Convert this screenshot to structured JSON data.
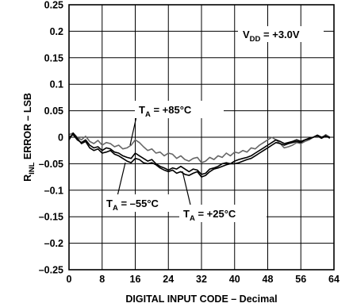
{
  "chart_data": {
    "type": "line",
    "xlabel": "DIGITAL INPUT CODE – Decimal",
    "ylabel_main": "R",
    "ylabel_sub": "INL",
    "ylabel_rest": " ERROR – LSB",
    "xlim": [
      0,
      64
    ],
    "ylim": [
      -0.25,
      0.25
    ],
    "xticks": [
      "0",
      "8",
      "16",
      "24",
      "32",
      "40",
      "48",
      "56",
      "64"
    ],
    "yticks": [
      "0.25",
      "0.2",
      "0.15",
      "0.1",
      "0.05",
      "0",
      "–0.05",
      "–0.1",
      "–0.15",
      "–0.2",
      "–0.25"
    ],
    "grid": true,
    "annotation": {
      "main": "V",
      "sub": "DD",
      "rest": " = +3.0V"
    },
    "series": [
      {
        "name_main": "T",
        "name_sub": "A",
        "name_rest": " = +85°C",
        "color": "#666666",
        "x": [
          0,
          1,
          2,
          3,
          4,
          5,
          6,
          7,
          8,
          9,
          10,
          11,
          12,
          13,
          14,
          15,
          16,
          17,
          18,
          19,
          20,
          21,
          22,
          23,
          24,
          25,
          26,
          27,
          28,
          29,
          30,
          31,
          32,
          33,
          34,
          35,
          36,
          37,
          38,
          39,
          40,
          41,
          42,
          43,
          44,
          45,
          46,
          47,
          48,
          49,
          50,
          51,
          52,
          53,
          54,
          55,
          56,
          57,
          58,
          59,
          60,
          61,
          62,
          63
        ],
        "y": [
          0.005,
          0.008,
          0.0,
          -0.005,
          0.002,
          -0.008,
          -0.012,
          -0.006,
          -0.015,
          -0.01,
          -0.012,
          -0.018,
          -0.015,
          -0.022,
          -0.02,
          -0.015,
          -0.005,
          -0.01,
          -0.018,
          -0.025,
          -0.022,
          -0.03,
          -0.028,
          -0.035,
          -0.03,
          -0.032,
          -0.04,
          -0.035,
          -0.042,
          -0.045,
          -0.04,
          -0.038,
          -0.048,
          -0.045,
          -0.038,
          -0.042,
          -0.035,
          -0.038,
          -0.03,
          -0.035,
          -0.028,
          -0.03,
          -0.025,
          -0.028,
          -0.02,
          -0.022,
          -0.015,
          -0.01,
          -0.005,
          0.0,
          -0.005,
          -0.012,
          -0.02,
          -0.018,
          -0.015,
          -0.01,
          -0.012,
          -0.008,
          -0.005,
          0.0,
          0.002,
          -0.002,
          0.005,
          0.0
        ]
      },
      {
        "name_main": "T",
        "name_sub": "A",
        "name_rest": " = +25°C",
        "color": "#000000",
        "x": [
          0,
          1,
          2,
          3,
          4,
          5,
          6,
          7,
          8,
          9,
          10,
          11,
          12,
          13,
          14,
          15,
          16,
          17,
          18,
          19,
          20,
          21,
          22,
          23,
          24,
          25,
          26,
          27,
          28,
          29,
          30,
          31,
          32,
          33,
          34,
          35,
          36,
          37,
          38,
          39,
          40,
          41,
          42,
          43,
          44,
          45,
          46,
          47,
          48,
          49,
          50,
          51,
          52,
          53,
          54,
          55,
          56,
          57,
          58,
          59,
          60,
          61,
          62,
          63
        ],
        "y": [
          0.0,
          0.005,
          -0.005,
          -0.01,
          -0.005,
          -0.015,
          -0.02,
          -0.018,
          -0.025,
          -0.02,
          -0.022,
          -0.028,
          -0.03,
          -0.035,
          -0.038,
          -0.04,
          -0.03,
          -0.035,
          -0.04,
          -0.045,
          -0.042,
          -0.05,
          -0.055,
          -0.058,
          -0.062,
          -0.058,
          -0.06,
          -0.055,
          -0.06,
          -0.065,
          -0.06,
          -0.062,
          -0.07,
          -0.068,
          -0.06,
          -0.058,
          -0.055,
          -0.05,
          -0.048,
          -0.05,
          -0.045,
          -0.042,
          -0.04,
          -0.038,
          -0.035,
          -0.03,
          -0.025,
          -0.02,
          -0.015,
          -0.01,
          -0.005,
          -0.008,
          -0.012,
          -0.01,
          -0.008,
          -0.005,
          -0.008,
          -0.005,
          -0.002,
          0.0,
          0.003,
          -0.002,
          0.002,
          0.0
        ]
      },
      {
        "name_main": "T",
        "name_sub": "A",
        "name_rest": " = –55°C",
        "color": "#000000",
        "x": [
          0,
          1,
          2,
          3,
          4,
          5,
          6,
          7,
          8,
          9,
          10,
          11,
          12,
          13,
          14,
          15,
          16,
          17,
          18,
          19,
          20,
          21,
          22,
          23,
          24,
          25,
          26,
          27,
          28,
          29,
          30,
          31,
          32,
          33,
          34,
          35,
          36,
          37,
          38,
          39,
          40,
          41,
          42,
          43,
          44,
          45,
          46,
          47,
          48,
          49,
          50,
          51,
          52,
          53,
          54,
          55,
          56,
          57,
          58,
          59,
          60,
          61,
          62,
          63
        ],
        "y": [
          -0.005,
          0.008,
          -0.002,
          -0.012,
          -0.008,
          -0.02,
          -0.025,
          -0.022,
          -0.03,
          -0.028,
          -0.025,
          -0.032,
          -0.035,
          -0.04,
          -0.045,
          -0.048,
          -0.04,
          -0.042,
          -0.048,
          -0.05,
          -0.048,
          -0.052,
          -0.058,
          -0.062,
          -0.065,
          -0.062,
          -0.068,
          -0.065,
          -0.07,
          -0.072,
          -0.068,
          -0.065,
          -0.075,
          -0.072,
          -0.065,
          -0.06,
          -0.058,
          -0.055,
          -0.052,
          -0.05,
          -0.05,
          -0.048,
          -0.045,
          -0.042,
          -0.04,
          -0.035,
          -0.03,
          -0.025,
          -0.02,
          -0.015,
          -0.01,
          -0.012,
          -0.015,
          -0.012,
          -0.01,
          -0.008,
          -0.01,
          -0.005,
          -0.003,
          0.0,
          0.004,
          0.0,
          0.003,
          -0.002
        ]
      }
    ]
  }
}
